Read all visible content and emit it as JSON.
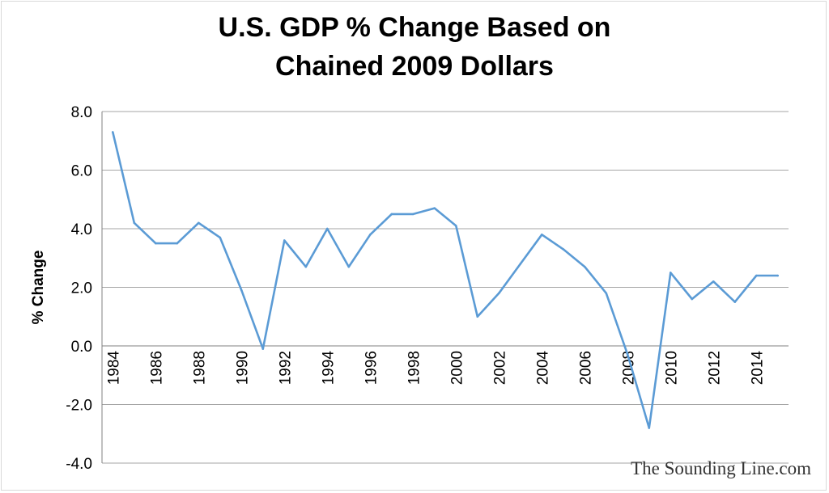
{
  "chart_data": {
    "type": "line",
    "title_line1": "U.S. GDP % Change Based on",
    "title_line2": "Chained 2009 Dollars",
    "ylabel": "% Change",
    "xlabel": "",
    "ylim": [
      -4.0,
      8.0
    ],
    "y_ticks": [
      "8.0",
      "6.0",
      "4.0",
      "2.0",
      "0.0",
      "-2.0",
      "-4.0"
    ],
    "x_tick_labels": [
      "1984",
      "1986",
      "1988",
      "1990",
      "1992",
      "1994",
      "1996",
      "1998",
      "2000",
      "2002",
      "2004",
      "2006",
      "2008",
      "2010",
      "2012",
      "2014"
    ],
    "grid": true,
    "legend": "none",
    "line_color": "#5b9bd5",
    "x": [
      1984,
      1985,
      1986,
      1987,
      1988,
      1989,
      1990,
      1991,
      1992,
      1993,
      1994,
      1995,
      1996,
      1997,
      1998,
      1999,
      2000,
      2001,
      2002,
      2003,
      2004,
      2005,
      2006,
      2007,
      2008,
      2009,
      2010,
      2011,
      2012,
      2013,
      2014,
      2015
    ],
    "series": [
      {
        "values": [
          7.3,
          4.2,
          3.5,
          3.5,
          4.2,
          3.7,
          1.9,
          -0.1,
          3.6,
          2.7,
          4.0,
          2.7,
          3.8,
          4.5,
          4.5,
          4.7,
          4.1,
          1.0,
          1.8,
          2.8,
          3.8,
          3.3,
          2.7,
          1.8,
          -0.3,
          -2.8,
          2.5,
          1.6,
          2.2,
          1.5,
          2.4,
          2.4
        ]
      }
    ]
  },
  "watermark": "The Sounding Line.com"
}
